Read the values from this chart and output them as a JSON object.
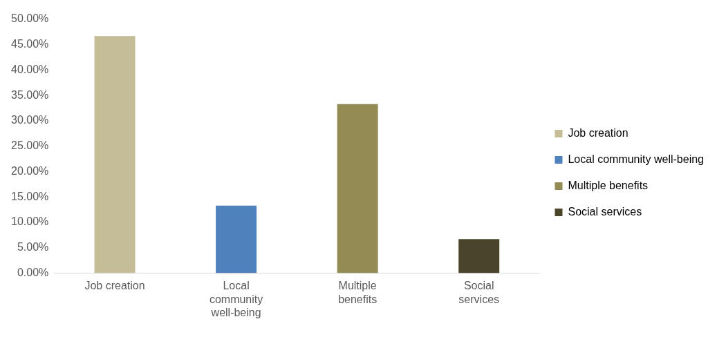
{
  "chart_data": {
    "type": "bar",
    "categories": [
      "Job creation",
      "Local community well-being",
      "Multiple benefits",
      "Social services"
    ],
    "series": [
      {
        "name": "Job creation",
        "color": "#c4bd97",
        "values": [
          46.7,
          null,
          null,
          null
        ]
      },
      {
        "name": "Local community well-being",
        "color": "#4f81bd",
        "values": [
          null,
          13.3,
          null,
          null
        ]
      },
      {
        "name": "Multiple benefits",
        "color": "#948a54",
        "values": [
          null,
          null,
          33.3,
          null
        ]
      },
      {
        "name": "Social services",
        "color": "#4a452a",
        "values": [
          null,
          null,
          null,
          6.7
        ]
      }
    ],
    "ylim": [
      0,
      50
    ],
    "yticks": [
      {
        "value": 0,
        "label": "0.00%"
      },
      {
        "value": 5,
        "label": "5.00%"
      },
      {
        "value": 10,
        "label": "10.00%"
      },
      {
        "value": 15,
        "label": "15.00%"
      },
      {
        "value": 20,
        "label": "20.00%"
      },
      {
        "value": 25,
        "label": "25.00%"
      },
      {
        "value": 30,
        "label": "30.00%"
      },
      {
        "value": 35,
        "label": "35.00%"
      },
      {
        "value": 40,
        "label": "40.00%"
      },
      {
        "value": 45,
        "label": "45.00%"
      },
      {
        "value": 50,
        "label": "50.00%"
      }
    ],
    "grid": false,
    "legend": "right"
  }
}
